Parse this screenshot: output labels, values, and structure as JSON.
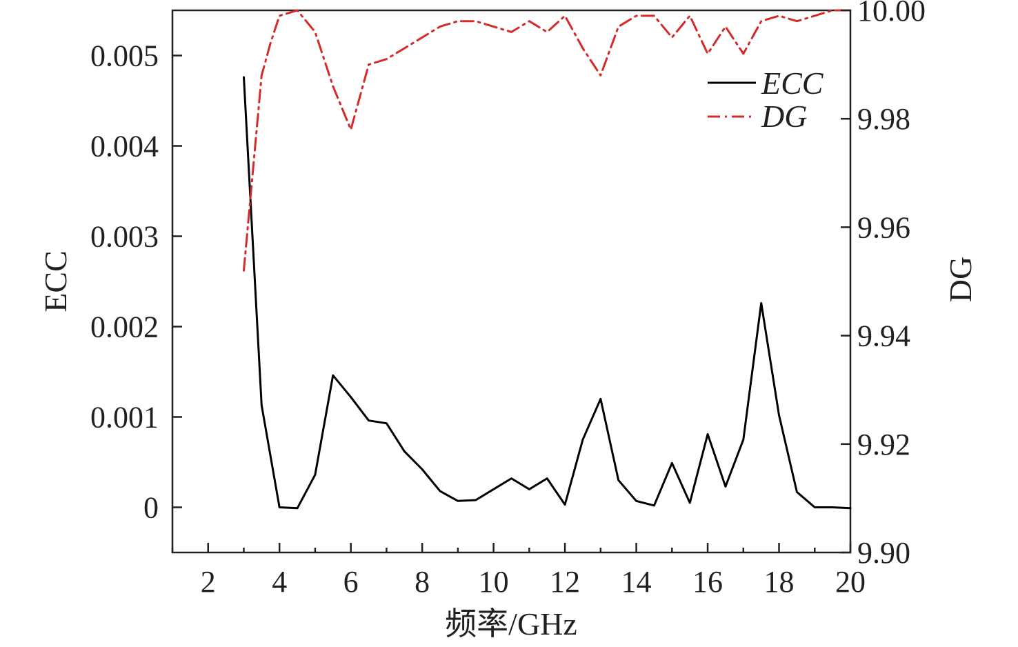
{
  "chart_data": {
    "type": "line",
    "xlabel": "频率/GHz",
    "ylabel_left": "ECC",
    "ylabel_right": "DG",
    "xlim": [
      1,
      20
    ],
    "ylim_left": [
      -0.0005,
      0.0055
    ],
    "ylim_right": [
      9.9,
      10.0
    ],
    "x_ticks": [
      2,
      4,
      6,
      8,
      10,
      12,
      14,
      16,
      18,
      20
    ],
    "x_tick_labels": [
      "2",
      "4",
      "6",
      "8",
      "10",
      "12",
      "14",
      "16",
      "18",
      "20"
    ],
    "y_left_ticks": [
      0,
      0.001,
      0.002,
      0.003,
      0.004,
      0.005
    ],
    "y_left_tick_labels": [
      "0",
      "0.001",
      "0.002",
      "0.003",
      "0.004",
      "0.005"
    ],
    "y_right_ticks": [
      9.9,
      9.92,
      9.94,
      9.96,
      9.98,
      10.0
    ],
    "y_right_tick_labels": [
      "9.90",
      "9.92",
      "9.94",
      "9.96",
      "9.98",
      "10.00"
    ],
    "grid": false,
    "legend_position": "top-right",
    "series": [
      {
        "name": "ECC",
        "axis": "left",
        "color": "#000000",
        "dash": "solid",
        "x": [
          3,
          3.5,
          4,
          4.5,
          5,
          5.5,
          6,
          6.5,
          7,
          7.5,
          8,
          8.5,
          9,
          9.5,
          10,
          10.5,
          11,
          11.5,
          12,
          12.5,
          13,
          13.5,
          14,
          14.5,
          15,
          15.5,
          16,
          16.5,
          17,
          17.5,
          18,
          18.5,
          19,
          19.5,
          20
        ],
        "values": [
          0.00476,
          0.00113,
          0.0,
          -1e-05,
          0.00036,
          0.00146,
          0.00122,
          0.00096,
          0.00093,
          0.00062,
          0.00042,
          0.00018,
          7e-05,
          8e-05,
          0.0002,
          0.00032,
          0.0002,
          0.00032,
          3e-05,
          0.00075,
          0.0012,
          0.0003,
          7e-05,
          2e-05,
          0.00049,
          5e-05,
          0.00081,
          0.00023,
          0.00075,
          0.00226,
          0.00102,
          0.00017,
          0.0,
          0.0,
          -1e-05
        ]
      },
      {
        "name": "DG",
        "axis": "right",
        "color": "#d42a2a",
        "dash": "dash-dot",
        "x": [
          3,
          3.25,
          3.5,
          3.75,
          4,
          4.5,
          5,
          5.5,
          6,
          6.5,
          7,
          7.5,
          8,
          8.5,
          9,
          9.5,
          10,
          10.5,
          11,
          11.5,
          12,
          12.5,
          13,
          13.5,
          14,
          14.5,
          15,
          15.5,
          16,
          16.5,
          17,
          17.5,
          18,
          18.5,
          19,
          19.5,
          20
        ],
        "values": [
          9.952,
          9.97,
          9.988,
          9.994,
          9.999,
          10.0,
          9.996,
          9.986,
          9.978,
          9.99,
          9.991,
          9.993,
          9.995,
          9.997,
          9.998,
          9.998,
          9.997,
          9.996,
          9.998,
          9.996,
          9.999,
          9.993,
          9.988,
          9.997,
          9.999,
          9.999,
          9.995,
          9.999,
          9.992,
          9.997,
          9.992,
          9.998,
          9.999,
          9.998,
          9.999,
          10.0,
          10.0
        ]
      }
    ]
  }
}
